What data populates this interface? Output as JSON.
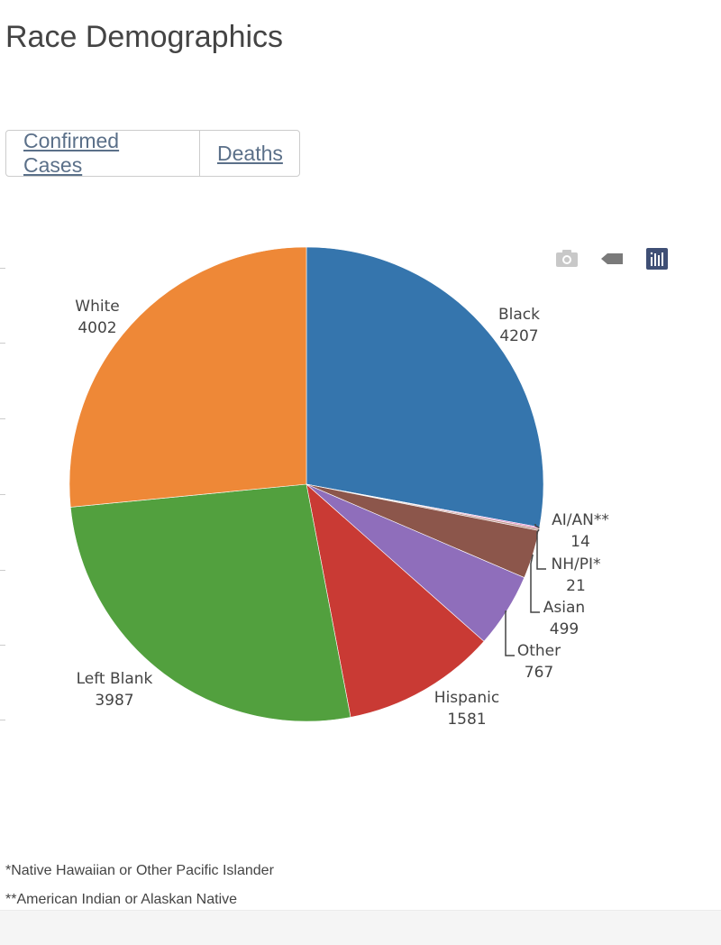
{
  "page": {
    "title": "Race Demographics"
  },
  "tabs": [
    {
      "label": "Confirmed Cases"
    },
    {
      "label": "Deaths"
    }
  ],
  "toolbar": {
    "icons": [
      "camera-icon",
      "tag-icon",
      "plotly-logo-icon"
    ],
    "colors": {
      "camera": "#c8c8c8",
      "tag": "#7a7a7a",
      "logo": "#3f4f75"
    }
  },
  "chart_data": {
    "type": "pie",
    "slices": [
      {
        "label": "Black",
        "value": 4207,
        "color": "#3575ad"
      },
      {
        "label": "AI/AN**",
        "value": 14,
        "color": "#e377c2"
      },
      {
        "label": "NH/PI*",
        "value": 21,
        "color": "#c49c94"
      },
      {
        "label": "Asian",
        "value": 499,
        "color": "#8c564b"
      },
      {
        "label": "Other",
        "value": 767,
        "color": "#8f6ebb"
      },
      {
        "label": "Hispanic",
        "value": 1581,
        "color": "#c93a34"
      },
      {
        "label": "Left Blank",
        "value": 3987,
        "color": "#52a03e"
      },
      {
        "label": "White",
        "value": 4002,
        "color": "#ee8837"
      }
    ],
    "direction": "clockwise",
    "start": "12 o'clock"
  },
  "footnotes": [
    "*Native Hawaiian or Other Pacific Islander",
    "**American Indian or Alaskan Native"
  ]
}
